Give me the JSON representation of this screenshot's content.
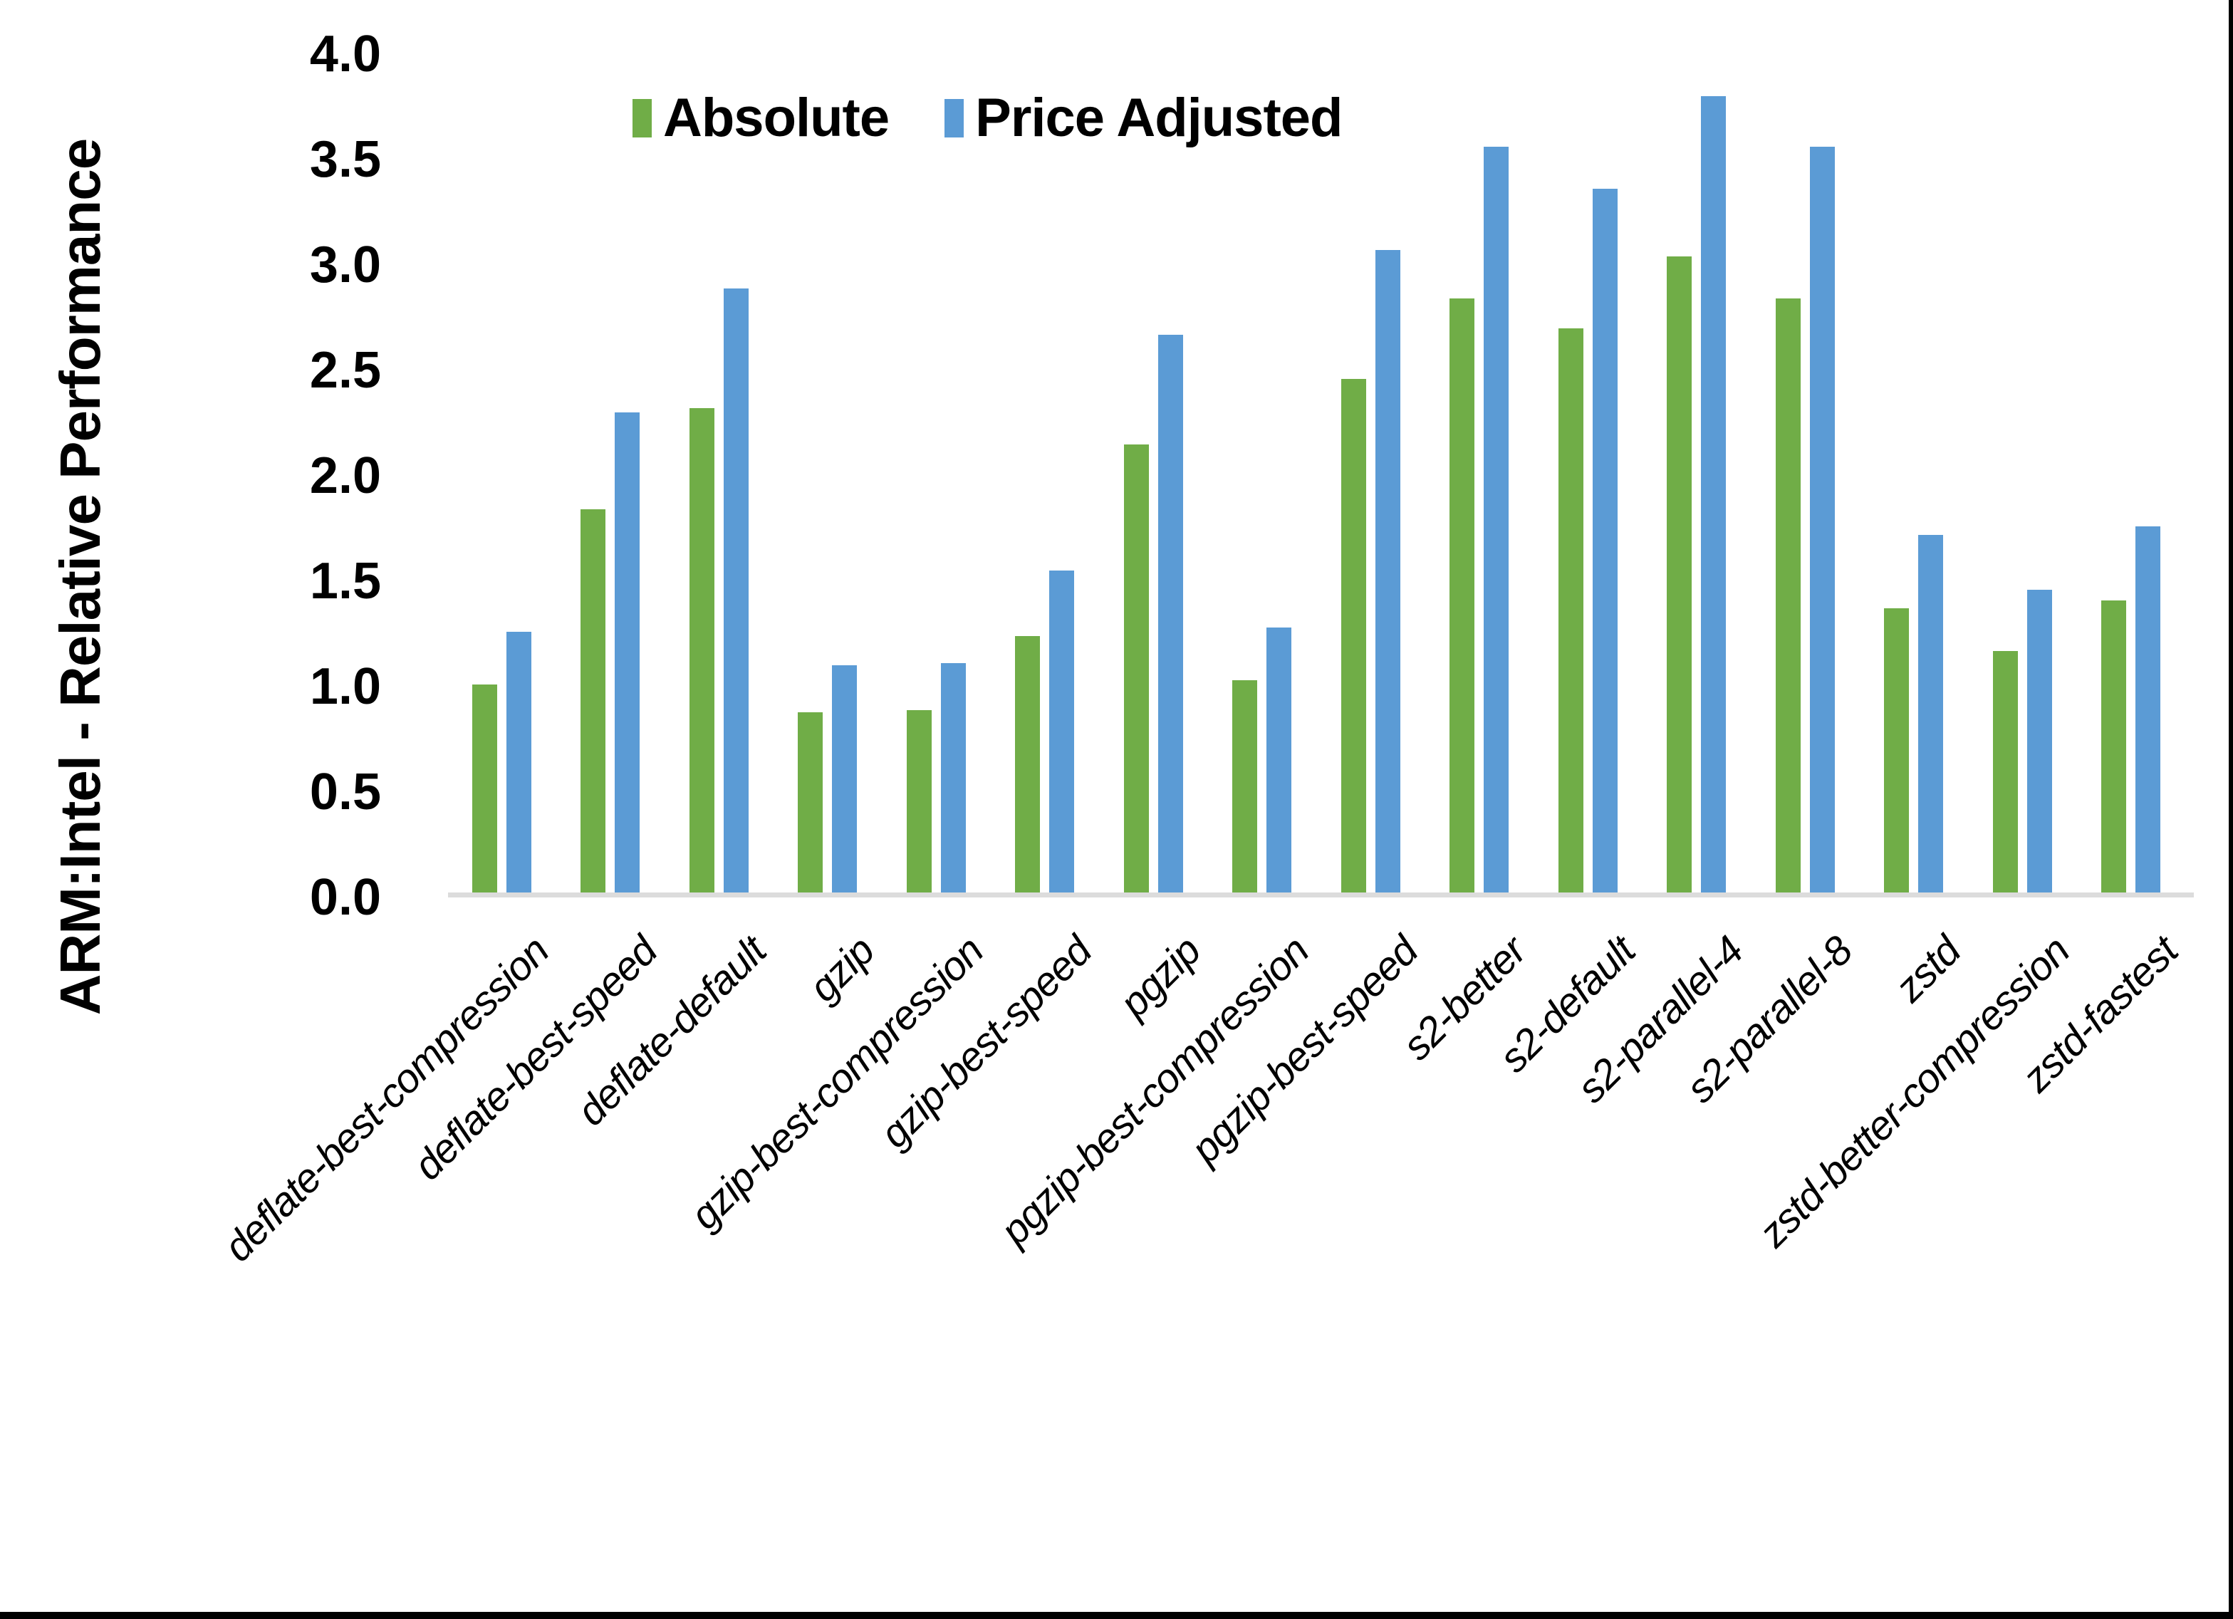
{
  "figure": {
    "y_axis_title": "ARM:Intel - Relative Performance",
    "y_tick_labels": [
      "4.0",
      "3.5",
      "3.0",
      "2.5",
      "2.0",
      "1.5",
      "1.0",
      "0.5",
      "0.0"
    ],
    "colors": {
      "absolute_green": "#70AD47",
      "price_adjusted_blue": "#5B9BD5",
      "axis_line_gray": "#DCDCDC",
      "frame_black": "#000000"
    }
  },
  "chart_data": {
    "type": "bar",
    "title": "",
    "xlabel": "",
    "ylabel": "ARM:Intel - Relative Performance",
    "ylim": [
      0,
      4.0
    ],
    "ytick_step": 0.5,
    "grid": false,
    "legend_position": "top",
    "categories": [
      "deflate-best-compression",
      "deflate-best-speed",
      "deflate-default",
      "gzip",
      "gzip-best-compression",
      "gzip-best-speed",
      "pgzip",
      "pgzip-best-compression",
      "pgzip-best-speed",
      "s2-better",
      "s2-default",
      "s2-parallel-4",
      "s2-parallel-8",
      "zstd",
      "zstd-better-compression",
      "zstd-fastest"
    ],
    "series": [
      {
        "name": "Absolute",
        "color": "#70AD47",
        "values": [
          1.01,
          1.84,
          2.32,
          0.88,
          0.89,
          1.24,
          2.15,
          1.03,
          2.46,
          2.84,
          2.7,
          3.04,
          2.84,
          1.37,
          1.17,
          1.41
        ]
      },
      {
        "name": "Price Adjusted",
        "color": "#5B9BD5",
        "values": [
          1.26,
          2.3,
          2.89,
          1.1,
          1.11,
          1.55,
          2.67,
          1.28,
          3.07,
          3.56,
          3.36,
          3.8,
          3.56,
          1.72,
          1.46,
          1.76
        ]
      }
    ]
  }
}
